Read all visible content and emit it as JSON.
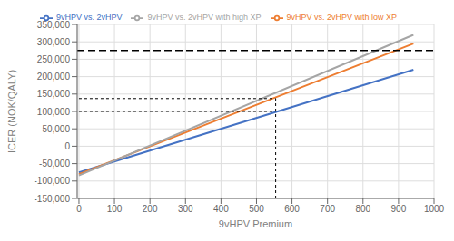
{
  "chart_data": {
    "type": "line",
    "x": [
      0,
      942
    ],
    "xlabel": "9vHPV Premium",
    "ylabel": "ICER (NOK/QALY)",
    "series": [
      {
        "name": "9vHPV vs. 2vHPV",
        "color": "#4472C4",
        "values": [
          -75000,
          220000
        ]
      },
      {
        "name": "9vHPV vs. 2vHPV with low XP",
        "color": "#ED7D31",
        "values": [
          -80000,
          295000
        ]
      },
      {
        "name": "9vHPV vs. 2vHPV with high XP",
        "color": "#A5A5A5",
        "values": [
          -84000,
          320000
        ]
      }
    ],
    "wtp_threshold": 275000,
    "base_case": {
      "x": 554,
      "x_from": 0,
      "y_blue": 100000,
      "y_orange": 137000
    },
    "xlim": [
      -5,
      1000
    ],
    "ylim": [
      -150000,
      350000
    ],
    "xticks": [
      0,
      100,
      200,
      300,
      400,
      500,
      600,
      700,
      800,
      900,
      1000
    ],
    "yticks": [
      {
        "value": -150000,
        "label": "-150,000"
      },
      {
        "value": -100000,
        "label": "-100,000"
      },
      {
        "value": -50000,
        "label": "-50,000"
      },
      0,
      {
        "value": 50000,
        "label": "50,000"
      },
      {
        "value": 100000,
        "label": "100,000"
      },
      {
        "value": 150000,
        "label": "150,000"
      },
      {
        "value": 200000,
        "label": "200,000"
      },
      {
        "value": 250000,
        "label": "250,000"
      },
      {
        "value": 300000,
        "label": "300,000"
      },
      {
        "value": 350000,
        "label": "350,000"
      }
    ],
    "grid": true,
    "legend": "top"
  }
}
